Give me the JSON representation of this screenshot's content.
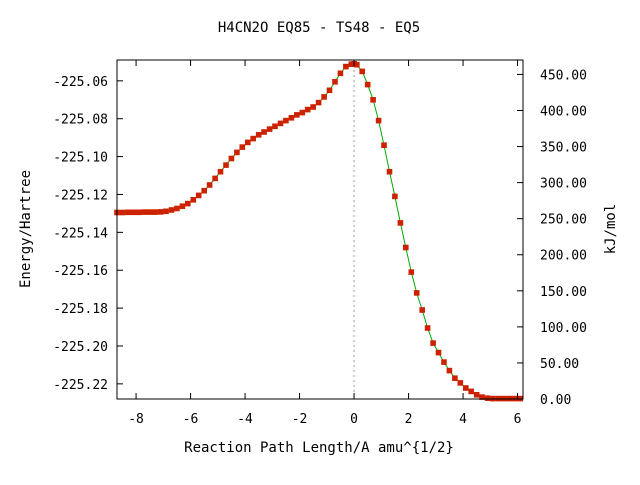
{
  "chart_data": {
    "type": "line",
    "title": "H4CN2O   EQ85 - TS48 - EQ5",
    "xlabel": "Reaction Path Length/A amu^{1/2}",
    "ylabel_left": "Energy/Hartree",
    "ylabel_right": "kJ/mol",
    "xlim": [
      -8.7,
      6.2
    ],
    "ylim_left": [
      -225.228,
      -225.049
    ],
    "ylim_right": [
      0,
      470
    ],
    "x_ticks": [
      -8,
      -6,
      -4,
      -2,
      0,
      2,
      4,
      6
    ],
    "x_tick_labels": [
      "-8",
      "-6",
      "-4",
      "-2",
      "0",
      "2",
      "4",
      "6"
    ],
    "y_left_ticks": [
      -225.22,
      -225.2,
      -225.18,
      -225.16,
      -225.14,
      -225.12,
      -225.1,
      -225.08,
      -225.06
    ],
    "y_left_tick_labels": [
      "-225.22",
      "-225.20",
      "-225.18",
      "-225.16",
      "-225.14",
      "-225.12",
      "-225.10",
      "-225.08",
      "-225.06"
    ],
    "y_right_ticks": [
      0,
      50,
      100,
      150,
      200,
      250,
      300,
      350,
      400,
      450
    ],
    "y_right_tick_labels": [
      "0.00",
      "50.00",
      "100.00",
      "150.00",
      "200.00",
      "250.00",
      "300.00",
      "350.00",
      "400.00",
      "450.00"
    ],
    "ts_x": 0,
    "grid": false,
    "colors": {
      "marker": "#cc2200",
      "line": "#00aa00",
      "ts_line": "#999999",
      "axis": "#000000"
    },
    "series": [
      {
        "x": [
          -8.7,
          -8.5,
          -8.3,
          -8.1,
          -7.9,
          -7.7,
          -7.5,
          -7.3,
          -7.1,
          -6.9,
          -6.7,
          -6.5,
          -6.3,
          -6.1,
          -5.9,
          -5.7,
          -5.5,
          -5.3,
          -5.1,
          -4.9,
          -4.7,
          -4.5,
          -4.3,
          -4.1,
          -3.9,
          -3.7,
          -3.5,
          -3.3,
          -3.1,
          -2.9,
          -2.7,
          -2.5,
          -2.3,
          -2.1,
          -1.9,
          -1.7,
          -1.5,
          -1.3,
          -1.1,
          -0.9,
          -0.7,
          -0.5,
          -0.3,
          -0.1,
          0.0,
          0.1,
          0.3,
          0.5,
          0.7,
          0.9,
          1.1,
          1.3,
          1.5,
          1.7,
          1.9,
          2.1,
          2.3,
          2.5,
          2.7,
          2.9,
          3.1,
          3.3,
          3.5,
          3.7,
          3.9,
          4.1,
          4.3,
          4.5,
          4.7,
          4.9,
          5.1,
          5.3,
          5.5,
          5.7,
          5.9,
          6.1
        ],
        "y": [
          -225.1295,
          -225.1295,
          -225.1294,
          -225.1294,
          -225.1294,
          -225.1293,
          -225.1293,
          -225.1293,
          -225.1292,
          -225.1289,
          -225.1282,
          -225.1274,
          -225.1262,
          -225.1248,
          -225.1228,
          -225.1205,
          -225.118,
          -225.115,
          -225.1115,
          -225.108,
          -225.1045,
          -225.101,
          -225.0978,
          -225.095,
          -225.0925,
          -225.0905,
          -225.0885,
          -225.087,
          -225.0855,
          -225.084,
          -225.0825,
          -225.081,
          -225.0795,
          -225.078,
          -225.0768,
          -225.0752,
          -225.0738,
          -225.0715,
          -225.0685,
          -225.065,
          -225.0605,
          -225.056,
          -225.0525,
          -225.0512,
          -225.051,
          -225.0515,
          -225.055,
          -225.062,
          -225.07,
          -225.081,
          -225.094,
          -225.108,
          -225.121,
          -225.135,
          -225.148,
          -225.161,
          -225.172,
          -225.181,
          -225.1905,
          -225.1985,
          -225.2035,
          -225.2085,
          -225.213,
          -225.217,
          -225.2195,
          -225.2222,
          -225.224,
          -225.2258,
          -225.227,
          -225.2276,
          -225.2278,
          -225.2278,
          -225.2278,
          -225.2278,
          -225.2278,
          -225.2278
        ]
      }
    ]
  }
}
